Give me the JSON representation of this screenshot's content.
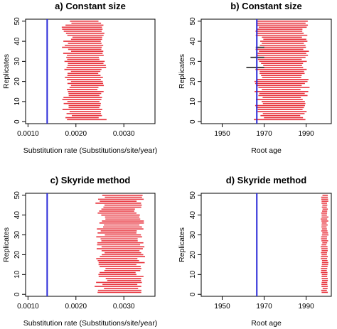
{
  "chart_data": [
    {
      "panel_title": "a) Constant size",
      "type": "interval",
      "xlabel": "Substitution rate (Substitutions/site/year)",
      "ylabel": "Replicates",
      "xlim": [
        0.00095,
        0.00365
      ],
      "ylim": [
        -1,
        51
      ],
      "xticks": [
        "0.0010",
        "0.0020",
        "0.0030"
      ],
      "xtick_values": [
        0.001,
        0.002,
        0.003
      ],
      "yticks": [
        "0",
        "10",
        "20",
        "30",
        "40",
        "50"
      ],
      "ytick_values": [
        0,
        10,
        20,
        30,
        40,
        50
      ],
      "reference_value": 0.0014,
      "reference_color": "#2b2bd8",
      "interval_color": "#e8333d",
      "outlier_intervals": [],
      "interval_center": 0.00218,
      "interval_halfwidth": 0.00036,
      "interval_jitter": 6e-05
    },
    {
      "panel_title": "b) Constant size",
      "type": "interval",
      "xlabel": "Root age",
      "ylabel": "Replicates",
      "xlim": [
        1940,
        2002
      ],
      "ylim": [
        -1,
        51
      ],
      "xticks": [
        "1950",
        "1970",
        "1990"
      ],
      "xtick_values": [
        1950,
        1970,
        1990
      ],
      "yticks": [
        "0",
        "10",
        "20",
        "30",
        "40",
        "50"
      ],
      "ytick_values": [
        0,
        10,
        20,
        30,
        40,
        50
      ],
      "reference_value": 1966.5,
      "reference_color": "#2b2bd8",
      "interval_color": "#e8333d",
      "outlier_color": "#222222",
      "outlier_intervals": [
        {
          "replicate": 37,
          "low": 1966.0,
          "high": 1970.0
        },
        {
          "replicate": 32,
          "low": 1963.5,
          "high": 1970.0
        },
        {
          "replicate": 27,
          "low": 1961.5,
          "high": 1970.0
        }
      ],
      "interval_center": 1978.5,
      "interval_halfwidth": 11.0,
      "interval_jitter": 1.5
    },
    {
      "panel_title": "c) Skyride method",
      "type": "interval",
      "xlabel": "Substitution rate (Substitutions/site/year)",
      "ylabel": "Replicates",
      "xlim": [
        0.00095,
        0.00365
      ],
      "ylim": [
        -1,
        51
      ],
      "xticks": [
        "0.0010",
        "0.0020",
        "0.0030"
      ],
      "xtick_values": [
        0.001,
        0.002,
        0.003
      ],
      "yticks": [
        "0",
        "10",
        "20",
        "30",
        "40",
        "50"
      ],
      "ytick_values": [
        0,
        10,
        20,
        30,
        40,
        50
      ],
      "reference_value": 0.0014,
      "reference_color": "#2b2bd8",
      "interval_color": "#e8333d",
      "outlier_intervals": [],
      "interval_center": 0.00293,
      "interval_halfwidth": 0.00042,
      "interval_jitter": 8e-05
    },
    {
      "panel_title": "d) Skyride method",
      "type": "interval",
      "xlabel": "Root age",
      "ylabel": "Replicates",
      "xlim": [
        1940,
        2002
      ],
      "ylim": [
        -1,
        51
      ],
      "xticks": [
        "1950",
        "1970",
        "1990"
      ],
      "xtick_values": [
        1950,
        1970,
        1990
      ],
      "yticks": [
        "0",
        "10",
        "20",
        "30",
        "40",
        "50"
      ],
      "ytick_values": [
        0,
        10,
        20,
        30,
        40,
        50
      ],
      "reference_value": 1966.5,
      "reference_color": "#2b2bd8",
      "interval_color": "#e8333d",
      "outlier_intervals": [],
      "interval_center": 1998.8,
      "interval_halfwidth": 1.4,
      "interval_jitter": 0.3
    }
  ]
}
